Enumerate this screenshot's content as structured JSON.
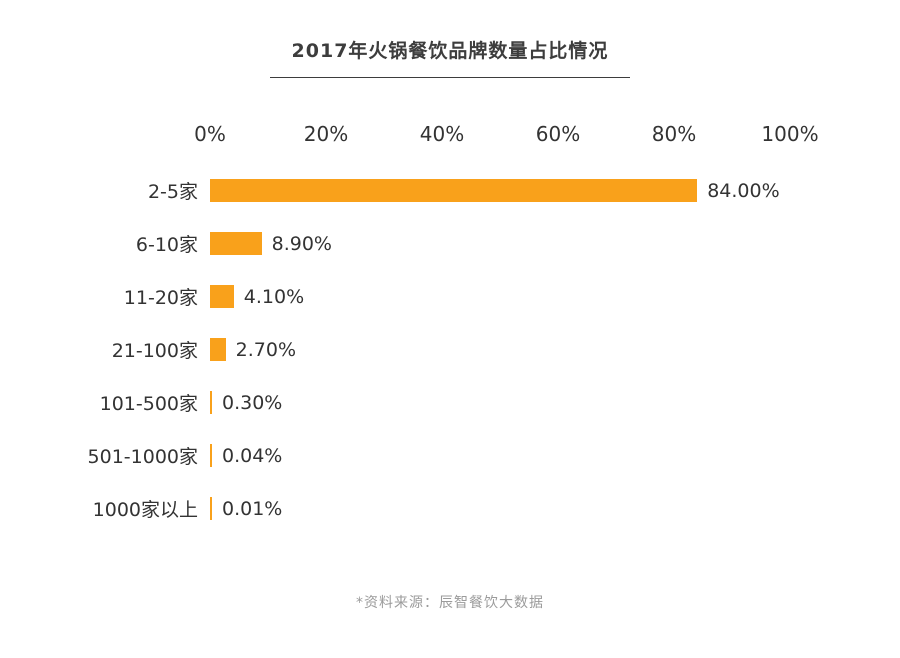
{
  "title": "2017年火锅餐饮品牌数量占比情况",
  "source_note": "*资料来源：辰智餐饮大数据",
  "accent_color": "#F9A11B",
  "chart_data": {
    "type": "bar",
    "orientation": "horizontal",
    "title": "2017年火锅餐饮品牌数量占比情况",
    "categories": [
      "2-5家",
      "6-10家",
      "11-20家",
      "21-100家",
      "101-500家",
      "501-1000家",
      "1000家以上"
    ],
    "values": [
      84.0,
      8.9,
      4.1,
      2.7,
      0.3,
      0.04,
      0.01
    ],
    "value_labels": [
      "84.00%",
      "8.90%",
      "4.10%",
      "2.70%",
      "0.30%",
      "0.04%",
      "0.01%"
    ],
    "x_ticks": [
      "0%",
      "20%",
      "40%",
      "60%",
      "80%",
      "100%"
    ],
    "xlim": [
      0,
      100
    ],
    "xlabel": "",
    "ylabel": "",
    "grid": false,
    "legend": "none",
    "bar_color": "#F9A11B"
  }
}
